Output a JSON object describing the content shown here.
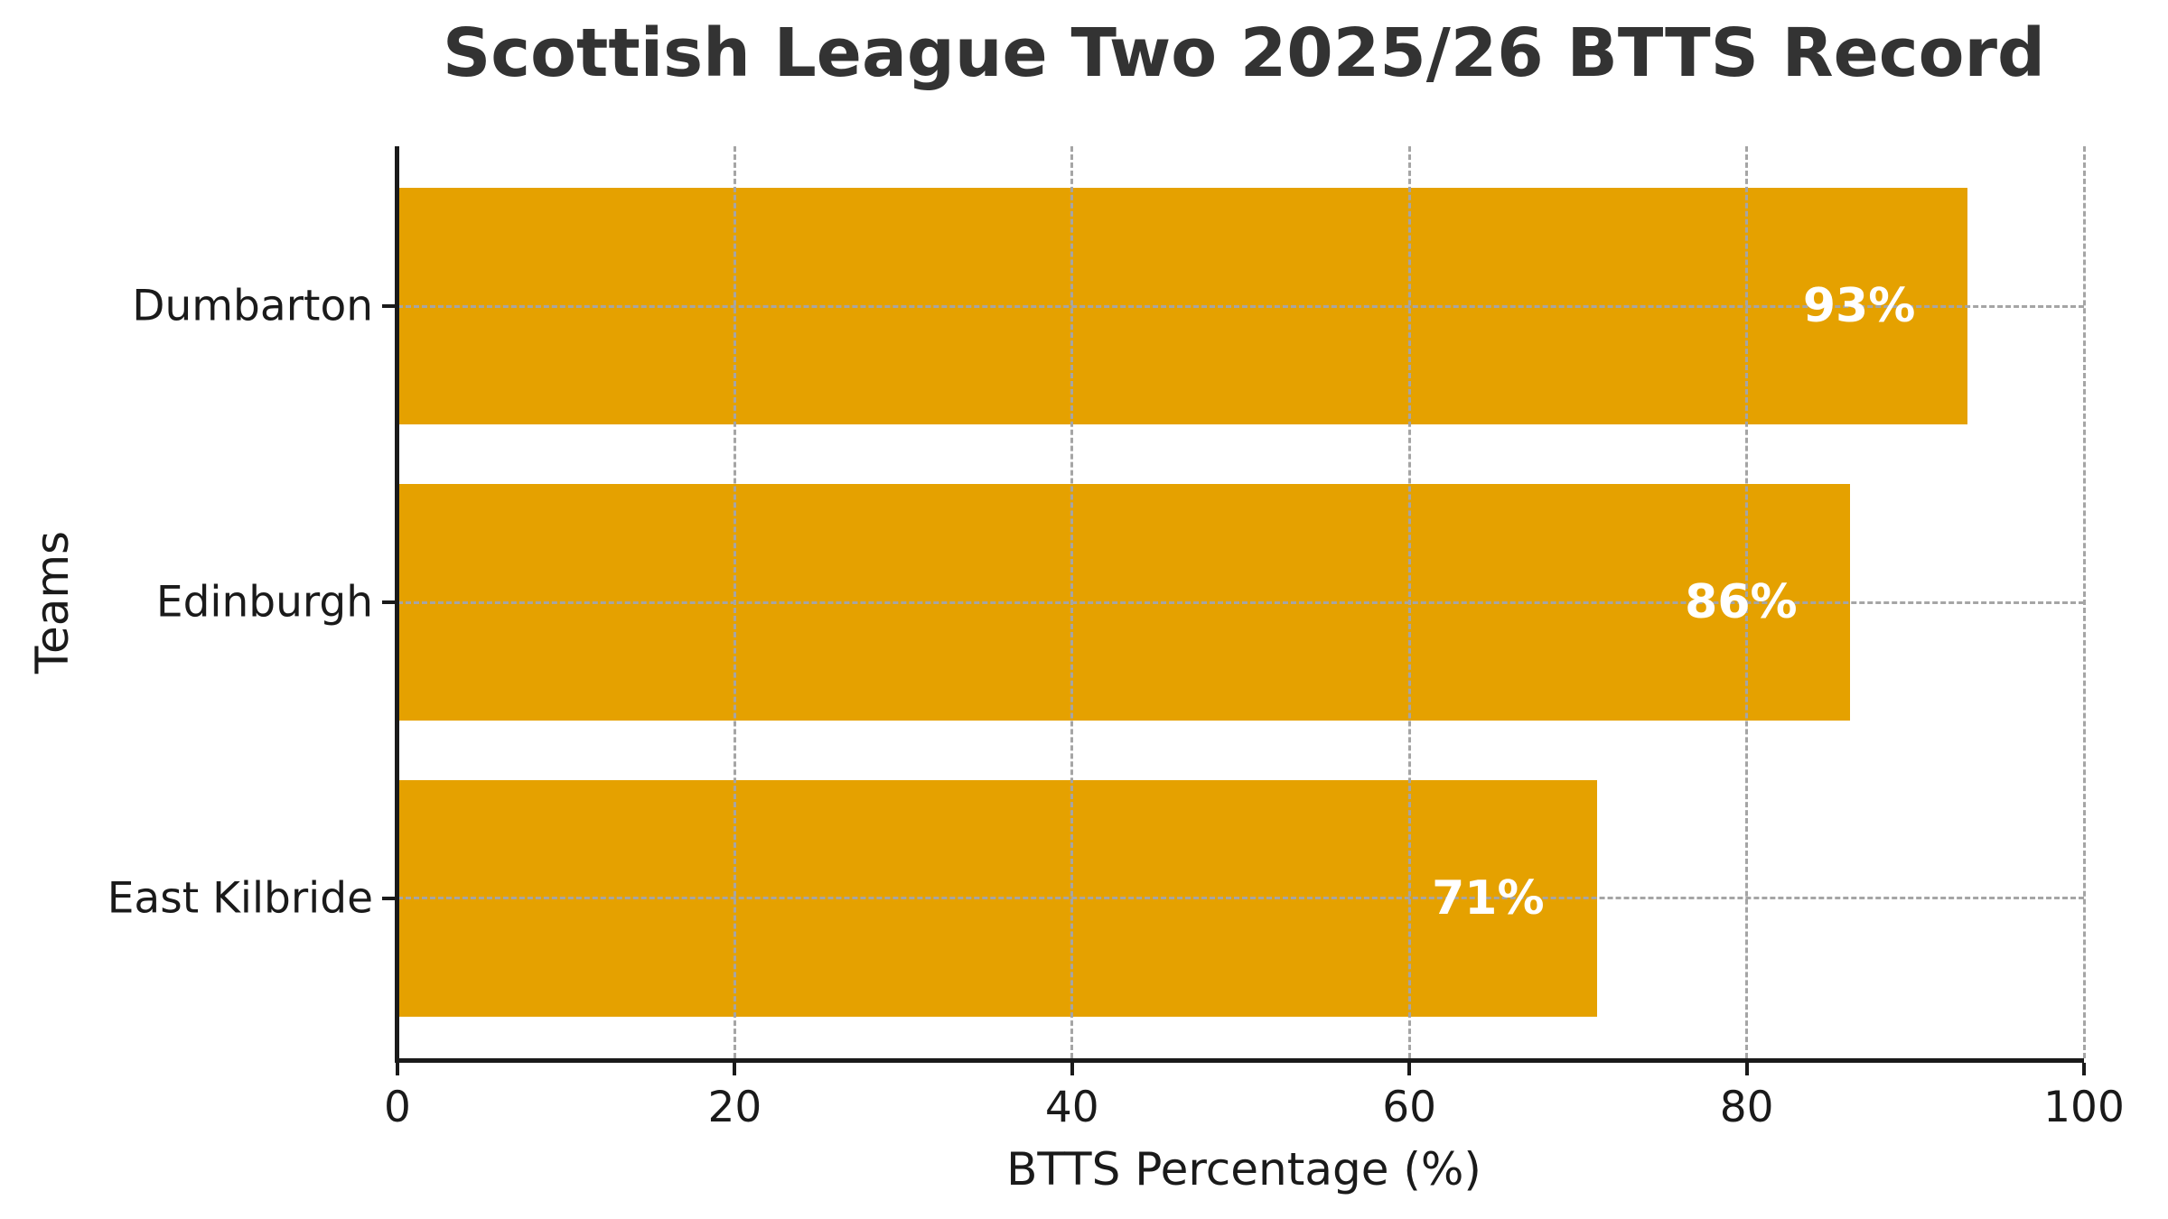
{
  "chart_data": {
    "type": "bar",
    "orientation": "horizontal",
    "title": "Scottish League Two 2025/26 BTTS Record",
    "xlabel": "BTTS Percentage (%)",
    "ylabel": "Teams",
    "categories": [
      "Dumbarton",
      "Edinburgh",
      "East Kilbride"
    ],
    "values": [
      93,
      86,
      71
    ],
    "value_labels": [
      "93%",
      "86%",
      "71%"
    ],
    "xticks": [
      0,
      20,
      40,
      60,
      80,
      100
    ],
    "xlim": [
      0,
      100
    ],
    "grid": "dashed",
    "legend": "none",
    "bar_color": "#E5A100",
    "value_label_color": "#ffffff",
    "title_color": "#333333",
    "axis_text_color": "#1a1a1a",
    "grid_color": "#a5a5a5"
  }
}
